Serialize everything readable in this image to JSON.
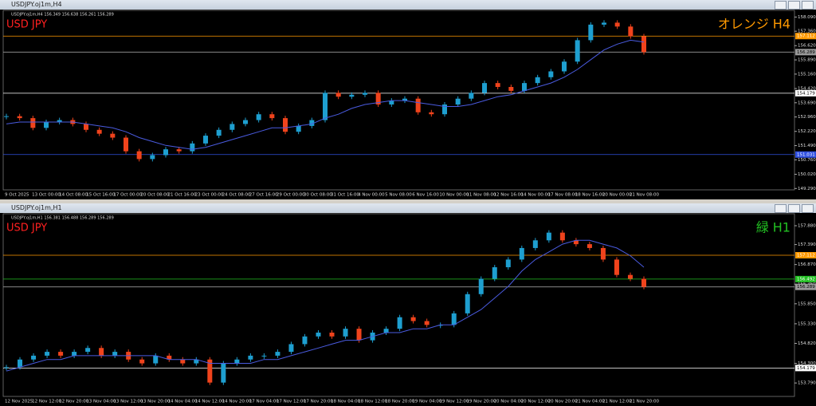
{
  "chart_data": [
    {
      "type": "candlestick",
      "title": "USDJPY.oj1m,H4",
      "header": "USDJPY.oj1m,H4  156.349 156.638 156.261 156.289",
      "label": "USD JPY",
      "tag": "オレンジ H4",
      "tag_color": "#ff9900",
      "x_labels": [
        "9 Oct 2025",
        "13 Oct 00:00",
        "14 Oct 08:00",
        "15 Oct 16:00",
        "17 Oct 00:00",
        "20 Oct 08:00",
        "21 Oct 16:00",
        "23 Oct 00:00",
        "24 Oct 08:00",
        "27 Oct 16:00",
        "29 Oct 00:00",
        "30 Oct 08:00",
        "31 Oct 16:00",
        "4 Nov 00:00",
        "5 Nov 08:00",
        "6 Nov 16:00",
        "10 Nov 00:00",
        "11 Nov 08:00",
        "12 Nov 16:00",
        "14 Nov 00:00",
        "17 Nov 08:00",
        "18 Nov 16:00",
        "20 Nov 00:00",
        "21 Nov 08:00"
      ],
      "ylim": [
        149.22,
        158.39
      ],
      "yticks": [
        {
          "value": 158.09,
          "label": "158.090"
        },
        {
          "value": 157.36,
          "label": "157.360"
        },
        {
          "value": 156.62,
          "label": "156.620"
        },
        {
          "value": 155.89,
          "label": "155.890"
        },
        {
          "value": 155.16,
          "label": "155.160"
        },
        {
          "value": 154.42,
          "label": "154.420"
        },
        {
          "value": 153.69,
          "label": "153.690"
        },
        {
          "value": 152.96,
          "label": "152.960"
        },
        {
          "value": 152.22,
          "label": "152.220"
        },
        {
          "value": 151.49,
          "label": "151.490"
        },
        {
          "value": 150.76,
          "label": "150.760"
        },
        {
          "value": 150.02,
          "label": "150.020"
        },
        {
          "value": 149.29,
          "label": "149.290"
        }
      ],
      "levels": [
        {
          "value": 157.112,
          "color": "#ff9900"
        },
        {
          "value": 156.289,
          "color": "#9a9a9a"
        },
        {
          "value": 154.179,
          "color": "#ffffff"
        },
        {
          "value": 151.031,
          "color": "#3050e0"
        }
      ],
      "up_color": "#1e9fd0",
      "down_color": "#f0431c",
      "closes": [
        153.0,
        152.9,
        152.4,
        152.7,
        152.8,
        152.6,
        152.3,
        152.1,
        151.9,
        151.2,
        150.8,
        151.0,
        151.3,
        151.2,
        151.6,
        152.0,
        152.3,
        152.6,
        152.8,
        153.1,
        152.9,
        152.2,
        152.5,
        152.8,
        154.2,
        154.0,
        154.1,
        154.2,
        153.6,
        153.8,
        153.9,
        153.2,
        153.1,
        153.6,
        153.9,
        154.2,
        154.7,
        154.5,
        154.3,
        154.7,
        155.0,
        155.3,
        155.8,
        156.9,
        157.7,
        157.8,
        157.6,
        157.1,
        156.289
      ],
      "ma": {
        "color": "#4a5be0",
        "values": [
          152.6,
          152.7,
          152.7,
          152.7,
          152.7,
          152.7,
          152.6,
          152.5,
          152.4,
          152.2,
          151.9,
          151.7,
          151.5,
          151.4,
          151.3,
          151.4,
          151.6,
          151.8,
          152.0,
          152.2,
          152.4,
          152.4,
          152.5,
          152.6,
          152.9,
          153.1,
          153.4,
          153.6,
          153.7,
          153.8,
          153.8,
          153.7,
          153.6,
          153.5,
          153.5,
          153.6,
          153.8,
          154.0,
          154.1,
          154.3,
          154.5,
          154.7,
          155.0,
          155.4,
          155.9,
          156.4,
          156.7,
          156.9,
          156.8
        ]
      }
    },
    {
      "type": "candlestick",
      "title": "USDJPY.oj1m,H1",
      "header": "USDJPY.oj1m,H1  156.381 156.488 156.289 156.289",
      "label": "USD JPY",
      "tag": "緑 H1",
      "tag_color": "#22c022",
      "x_labels": [
        "12 Nov 2025",
        "12 Nov 12:00",
        "12 Nov 20:00",
        "13 Nov 04:00",
        "13 Nov 12:00",
        "13 Nov 20:00",
        "14 Nov 04:00",
        "14 Nov 12:00",
        "14 Nov 20:00",
        "17 Nov 04:00",
        "17 Nov 12:00",
        "17 Nov 20:00",
        "18 Nov 04:00",
        "18 Nov 12:00",
        "18 Nov 20:00",
        "19 Nov 04:00",
        "19 Nov 12:00",
        "19 Nov 20:00",
        "20 Nov 04:00",
        "20 Nov 12:00",
        "20 Nov 20:00",
        "21 Nov 04:00",
        "21 Nov 12:00",
        "21 Nov 20:00"
      ],
      "ylim": [
        153.44,
        158.17
      ],
      "yticks": [
        {
          "value": 157.88,
          "label": "157.880"
        },
        {
          "value": 157.39,
          "label": "157.390"
        },
        {
          "value": 156.87,
          "label": "156.870"
        },
        {
          "value": 156.36,
          "label": "156.360"
        },
        {
          "value": 155.85,
          "label": "155.850"
        },
        {
          "value": 155.33,
          "label": "155.330"
        },
        {
          "value": 154.82,
          "label": "154.820"
        },
        {
          "value": 154.3,
          "label": "154.300"
        },
        {
          "value": 153.79,
          "label": "153.790"
        }
      ],
      "levels": [
        {
          "value": 157.112,
          "color": "#ff9900"
        },
        {
          "value": 156.492,
          "color": "#22c022"
        },
        {
          "value": 156.289,
          "color": "#9a9a9a"
        },
        {
          "value": 154.179,
          "color": "#ffffff"
        }
      ],
      "up_color": "#1e9fd0",
      "down_color": "#f0431c",
      "closes": [
        154.2,
        154.4,
        154.5,
        154.6,
        154.5,
        154.6,
        154.7,
        154.5,
        154.6,
        154.4,
        154.3,
        154.5,
        154.4,
        154.3,
        154.4,
        153.8,
        154.3,
        154.4,
        154.5,
        154.5,
        154.6,
        154.8,
        155.0,
        155.1,
        155.0,
        155.2,
        154.9,
        155.1,
        155.2,
        155.5,
        155.4,
        155.3,
        155.3,
        155.6,
        156.1,
        156.5,
        156.8,
        157.0,
        157.3,
        157.5,
        157.7,
        157.5,
        157.4,
        157.3,
        157.0,
        156.6,
        156.5,
        156.289
      ],
      "ma": {
        "color": "#4a5be0",
        "values": [
          154.1,
          154.2,
          154.3,
          154.4,
          154.4,
          154.5,
          154.5,
          154.5,
          154.5,
          154.5,
          154.5,
          154.5,
          154.4,
          154.4,
          154.4,
          154.3,
          154.3,
          154.3,
          154.3,
          154.4,
          154.4,
          154.5,
          154.6,
          154.7,
          154.8,
          154.9,
          154.9,
          155.0,
          155.1,
          155.1,
          155.2,
          155.2,
          155.3,
          155.3,
          155.5,
          155.7,
          156.0,
          156.3,
          156.7,
          157.0,
          157.2,
          157.4,
          157.5,
          157.5,
          157.4,
          157.3,
          157.1,
          156.8
        ]
      }
    }
  ]
}
